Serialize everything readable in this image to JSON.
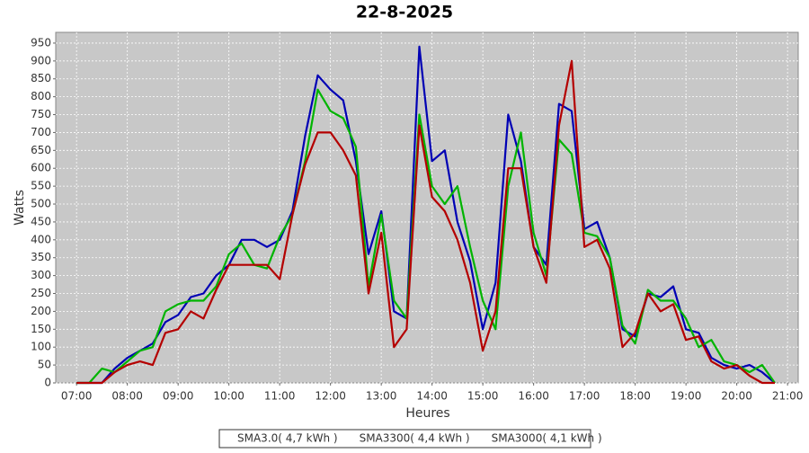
{
  "chart_data": {
    "type": "line",
    "title": "22-8-2025",
    "xlabel": "Heures",
    "ylabel": "Watts",
    "x": [
      7.0,
      7.25,
      7.5,
      7.75,
      8.0,
      8.25,
      8.5,
      8.75,
      9.0,
      9.25,
      9.5,
      9.75,
      10.0,
      10.25,
      10.5,
      10.75,
      11.0,
      11.25,
      11.5,
      11.75,
      12.0,
      12.25,
      12.5,
      12.75,
      13.0,
      13.25,
      13.5,
      13.75,
      14.0,
      14.25,
      14.5,
      14.75,
      15.0,
      15.25,
      15.5,
      15.75,
      16.0,
      16.25,
      16.5,
      16.75,
      17.0,
      17.25,
      17.5,
      17.75,
      18.0,
      18.25,
      18.5,
      18.75,
      19.0,
      19.25,
      19.5,
      19.75,
      20.0,
      20.25,
      20.5,
      20.75
    ],
    "series": [
      {
        "name": "SMA3.0( 4,7 kWh )",
        "color": "#0000b4",
        "values": [
          0,
          0,
          0,
          40,
          70,
          90,
          110,
          170,
          190,
          240,
          250,
          300,
          330,
          400,
          400,
          380,
          400,
          480,
          690,
          860,
          820,
          790,
          620,
          360,
          480,
          200,
          180,
          940,
          620,
          650,
          450,
          340,
          150,
          280,
          750,
          620,
          380,
          330,
          780,
          760,
          430,
          450,
          350,
          150,
          130,
          250,
          240,
          270,
          150,
          140,
          70,
          50,
          40,
          50,
          30,
          0
        ]
      },
      {
        "name": "SMA3300( 4,4 kWh )",
        "color": "#00b400",
        "values": [
          0,
          0,
          40,
          30,
          60,
          90,
          100,
          200,
          220,
          230,
          230,
          270,
          360,
          390,
          330,
          320,
          410,
          470,
          620,
          820,
          760,
          740,
          660,
          270,
          470,
          230,
          180,
          750,
          550,
          500,
          550,
          380,
          230,
          150,
          550,
          700,
          420,
          300,
          680,
          640,
          420,
          410,
          350,
          160,
          110,
          260,
          230,
          230,
          180,
          100,
          120,
          60,
          50,
          30,
          50,
          0
        ]
      },
      {
        "name": "SMA3000( 4,1 kWh )",
        "color": "#b40000",
        "values": [
          0,
          0,
          0,
          30,
          50,
          60,
          50,
          140,
          150,
          200,
          180,
          260,
          330,
          330,
          330,
          330,
          290,
          470,
          610,
          700,
          700,
          650,
          580,
          250,
          420,
          100,
          150,
          720,
          520,
          480,
          400,
          280,
          90,
          200,
          600,
          600,
          380,
          280,
          720,
          900,
          380,
          400,
          320,
          100,
          140,
          250,
          200,
          220,
          120,
          130,
          60,
          40,
          50,
          20,
          0,
          0
        ]
      }
    ],
    "xlim": [
      6.59,
      21.21
    ],
    "xticks": [
      {
        "value": 7,
        "label": "07:00"
      },
      {
        "value": 8,
        "label": "08:00"
      },
      {
        "value": 9,
        "label": "09:00"
      },
      {
        "value": 10,
        "label": "10:00"
      },
      {
        "value": 11,
        "label": "11:00"
      },
      {
        "value": 12,
        "label": "12:00"
      },
      {
        "value": 13,
        "label": "13:00"
      },
      {
        "value": 14,
        "label": "14:00"
      },
      {
        "value": 15,
        "label": "15:00"
      },
      {
        "value": 16,
        "label": "16:00"
      },
      {
        "value": 17,
        "label": "17:00"
      },
      {
        "value": 18,
        "label": "18:00"
      },
      {
        "value": 19,
        "label": "19:00"
      },
      {
        "value": 20,
        "label": "20:00"
      },
      {
        "value": 21,
        "label": "21:00"
      }
    ],
    "ylim": [
      0,
      980
    ],
    "yticks": [
      0,
      50,
      100,
      150,
      200,
      250,
      300,
      350,
      400,
      450,
      500,
      550,
      600,
      650,
      700,
      750,
      800,
      850,
      900,
      950
    ],
    "grid": true
  }
}
